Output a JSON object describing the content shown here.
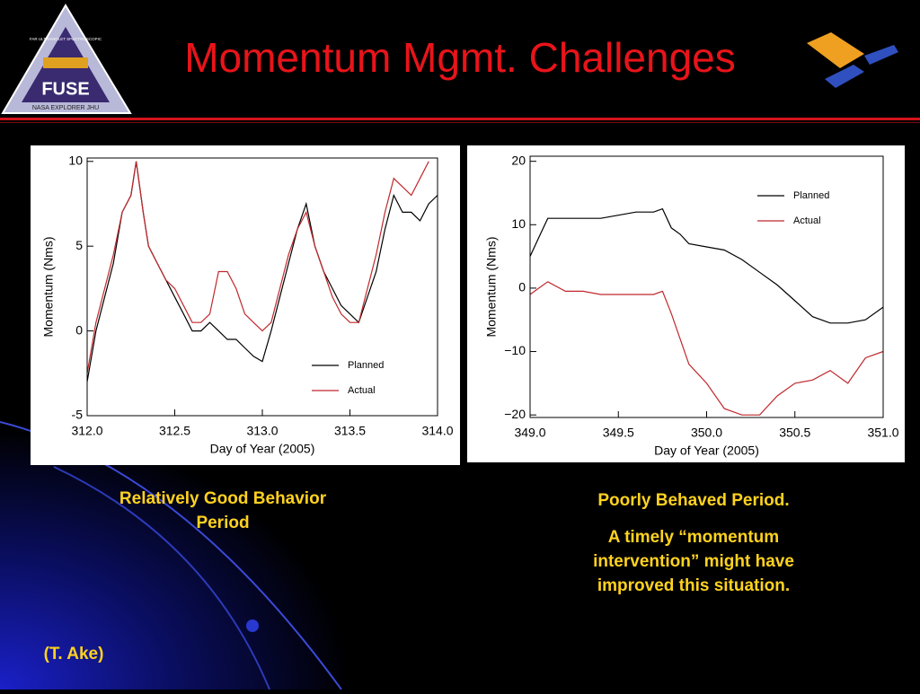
{
  "slide": {
    "title": "Momentum Mgmt. Challenges",
    "logo": {
      "name": "FUSE",
      "top": "FAR ULTRAVIOLET SPECTROSCOPIC",
      "bottom": "NASA EXPLORER JHU"
    },
    "caption_left": [
      "Relatively Good Behavior",
      "Period"
    ],
    "caption_right_head": "Poorly Behaved Period.",
    "caption_right": [
      "A timely “momentum",
      "intervention” might have",
      "improved this situation."
    ],
    "credit": "(T. Ake)"
  },
  "chart_data": [
    {
      "type": "line",
      "xlabel": "Day of Year (2005)",
      "ylabel": "Momentum (Nms)",
      "xlim": [
        312.0,
        314.0
      ],
      "ylim": [
        -5,
        10.2
      ],
      "xticks": [
        {
          "value": 312.0,
          "label": "312.0"
        },
        {
          "value": 312.5,
          "label": "312.5"
        },
        {
          "value": 313.0,
          "label": "313.0"
        },
        {
          "value": 313.5,
          "label": "313.5"
        },
        {
          "value": 314.0,
          "label": "314.0"
        }
      ],
      "yticks": [
        -5,
        0,
        5,
        10
      ],
      "legend": "lower right",
      "x": [
        312.0,
        312.05,
        312.1,
        312.15,
        312.2,
        312.25,
        312.28,
        312.32,
        312.35,
        312.4,
        312.45,
        312.5,
        312.55,
        312.6,
        312.65,
        312.7,
        312.75,
        312.8,
        312.85,
        312.9,
        312.95,
        313.0,
        313.05,
        313.1,
        313.15,
        313.2,
        313.25,
        313.3,
        313.35,
        313.4,
        313.45,
        313.5,
        313.55,
        313.6,
        313.65,
        313.7,
        313.75,
        313.8,
        313.85,
        313.9,
        313.95,
        314.0
      ],
      "series": [
        {
          "name": "Planned",
          "color": "#000000",
          "values": [
            -3,
            0,
            2,
            4,
            7,
            8,
            10,
            7,
            5,
            4,
            3,
            2,
            1,
            0,
            0,
            0.5,
            0,
            -0.5,
            -0.5,
            -1,
            -1.5,
            -1.8,
            0,
            2,
            4,
            6,
            7.5,
            5,
            3.5,
            2.5,
            1.5,
            1,
            0.5,
            2,
            3.5,
            6,
            8,
            7,
            7,
            6.5,
            7.5,
            8
          ]
        },
        {
          "name": "Actual",
          "color": "#c0282d",
          "values": [
            -2.5,
            0.5,
            2.5,
            4.5,
            7,
            8,
            10,
            7,
            5,
            4,
            3,
            2.5,
            1.5,
            0.5,
            0.5,
            1,
            3.5,
            3.5,
            2.5,
            1,
            0.5,
            0,
            0.5,
            2.5,
            4.5,
            6,
            7,
            5,
            3.5,
            2,
            1,
            0.5,
            0.5,
            2.5,
            4.5,
            7,
            9,
            8.5,
            8,
            9,
            10,
            null
          ]
        }
      ]
    },
    {
      "type": "line",
      "xlabel": "Day of Year (2005)",
      "ylabel": "Momentum (Nms)",
      "xlim": [
        349.0,
        351.0
      ],
      "ylim": [
        -20.4,
        20.8
      ],
      "xticks": [
        {
          "value": 349.0,
          "label": "349.0"
        },
        {
          "value": 349.5,
          "label": "349.5"
        },
        {
          "value": 350.0,
          "label": "350.0"
        },
        {
          "value": 350.5,
          "label": "350.5"
        },
        {
          "value": 351.0,
          "label": "351.0"
        }
      ],
      "yticks": [
        {
          "value": -20,
          "label": "−20"
        },
        {
          "value": -10,
          "label": "−10"
        },
        0,
        10,
        20
      ],
      "legend": "upper right",
      "x": [
        349.0,
        349.05,
        349.1,
        349.2,
        349.3,
        349.4,
        349.5,
        349.6,
        349.7,
        349.75,
        349.8,
        349.85,
        349.9,
        350.0,
        350.1,
        350.2,
        350.3,
        350.4,
        350.5,
        350.6,
        350.7,
        350.8,
        350.9,
        351.0
      ],
      "series": [
        {
          "name": "Planned",
          "color": "#000000",
          "values": [
            5,
            8,
            11,
            11,
            11,
            11,
            11.5,
            12,
            12,
            12.5,
            9.5,
            8.5,
            7,
            6.5,
            6,
            4.5,
            2.5,
            0.5,
            -2,
            -4.5,
            -5.5,
            -5.5,
            -5,
            -3
          ]
        },
        {
          "name": "Actual",
          "color": "#c0282d",
          "values": [
            -1,
            0,
            1,
            -0.5,
            -0.5,
            -1,
            -1,
            -1,
            -1,
            -0.5,
            -4,
            -8,
            -12,
            -15,
            -19,
            -20,
            -20,
            -17,
            -15,
            -14.5,
            -13,
            -15,
            -11,
            -10
          ]
        }
      ]
    }
  ]
}
